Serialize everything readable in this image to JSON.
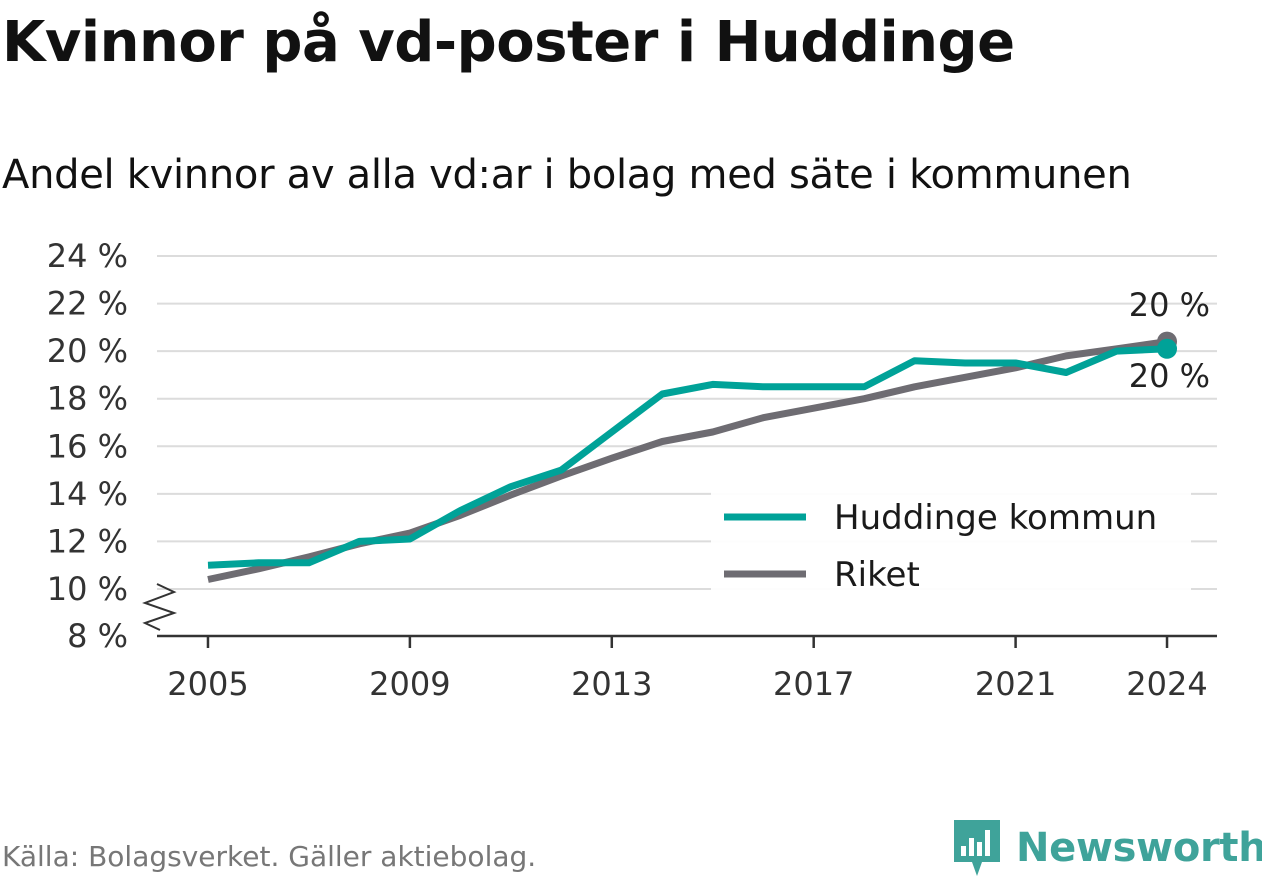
{
  "title": "Kvinnor på vd-poster i Huddinge",
  "subtitle": "Andel kvinnor av alla vd:ar i bolag med säte i kommunen",
  "source": "Källa: Bolagsverket. Gäller aktiebolag.",
  "brand": {
    "name": "Newsworthy",
    "icon": "newsworthy-logo-icon"
  },
  "colors": {
    "huddinge": "#00a298",
    "riket": "#6e6c72",
    "grid": "#dcdcdc",
    "axis": "#333333"
  },
  "chart_data": {
    "type": "line",
    "x_ticks": [
      2005,
      2009,
      2013,
      2017,
      2021,
      2024
    ],
    "y_ticks": [
      "8 %",
      "10 %",
      "12 %",
      "14 %",
      "16 %",
      "18 %",
      "20 %",
      "22 %",
      "24 %"
    ],
    "y_tick_values": [
      8,
      10,
      12,
      14,
      16,
      18,
      20,
      22,
      24
    ],
    "ylim": [
      8,
      24
    ],
    "xlim": [
      2004,
      2025
    ],
    "y_axis_break": true,
    "grid": true,
    "legend_position": "bottom-right",
    "series": [
      {
        "name": "Huddinge kommun",
        "color": "#00a298",
        "end_label": "20 %",
        "points": [
          {
            "x": 2005,
            "y": 11.0
          },
          {
            "x": 2006,
            "y": 11.1
          },
          {
            "x": 2007,
            "y": 11.1
          },
          {
            "x": 2008,
            "y": 12.0
          },
          {
            "x": 2009,
            "y": 12.1
          },
          {
            "x": 2010,
            "y": 13.3
          },
          {
            "x": 2011,
            "y": 14.3
          },
          {
            "x": 2012,
            "y": 15.0
          },
          {
            "x": 2013,
            "y": 16.6
          },
          {
            "x": 2014,
            "y": 18.2
          },
          {
            "x": 2015,
            "y": 18.6
          },
          {
            "x": 2016,
            "y": 18.5
          },
          {
            "x": 2017,
            "y": 18.5
          },
          {
            "x": 2018,
            "y": 18.5
          },
          {
            "x": 2019,
            "y": 19.6
          },
          {
            "x": 2020,
            "y": 19.5
          },
          {
            "x": 2021,
            "y": 19.5
          },
          {
            "x": 2022,
            "y": 19.1
          },
          {
            "x": 2023,
            "y": 20.0
          },
          {
            "x": 2024,
            "y": 20.1
          }
        ]
      },
      {
        "name": "Riket",
        "color": "#6e6c72",
        "end_label": "20 %",
        "points": [
          {
            "x": 2005,
            "y": 10.4
          },
          {
            "x": 2006,
            "y": 10.85
          },
          {
            "x": 2007,
            "y": 11.35
          },
          {
            "x": 2008,
            "y": 11.9
          },
          {
            "x": 2009,
            "y": 12.35
          },
          {
            "x": 2010,
            "y": 13.1
          },
          {
            "x": 2011,
            "y": 13.95
          },
          {
            "x": 2012,
            "y": 14.75
          },
          {
            "x": 2013,
            "y": 15.5
          },
          {
            "x": 2014,
            "y": 16.2
          },
          {
            "x": 2015,
            "y": 16.6
          },
          {
            "x": 2016,
            "y": 17.2
          },
          {
            "x": 2017,
            "y": 17.6
          },
          {
            "x": 2018,
            "y": 18.0
          },
          {
            "x": 2019,
            "y": 18.5
          },
          {
            "x": 2020,
            "y": 18.9
          },
          {
            "x": 2021,
            "y": 19.3
          },
          {
            "x": 2022,
            "y": 19.8
          },
          {
            "x": 2023,
            "y": 20.1
          },
          {
            "x": 2024,
            "y": 20.4
          }
        ]
      }
    ]
  }
}
